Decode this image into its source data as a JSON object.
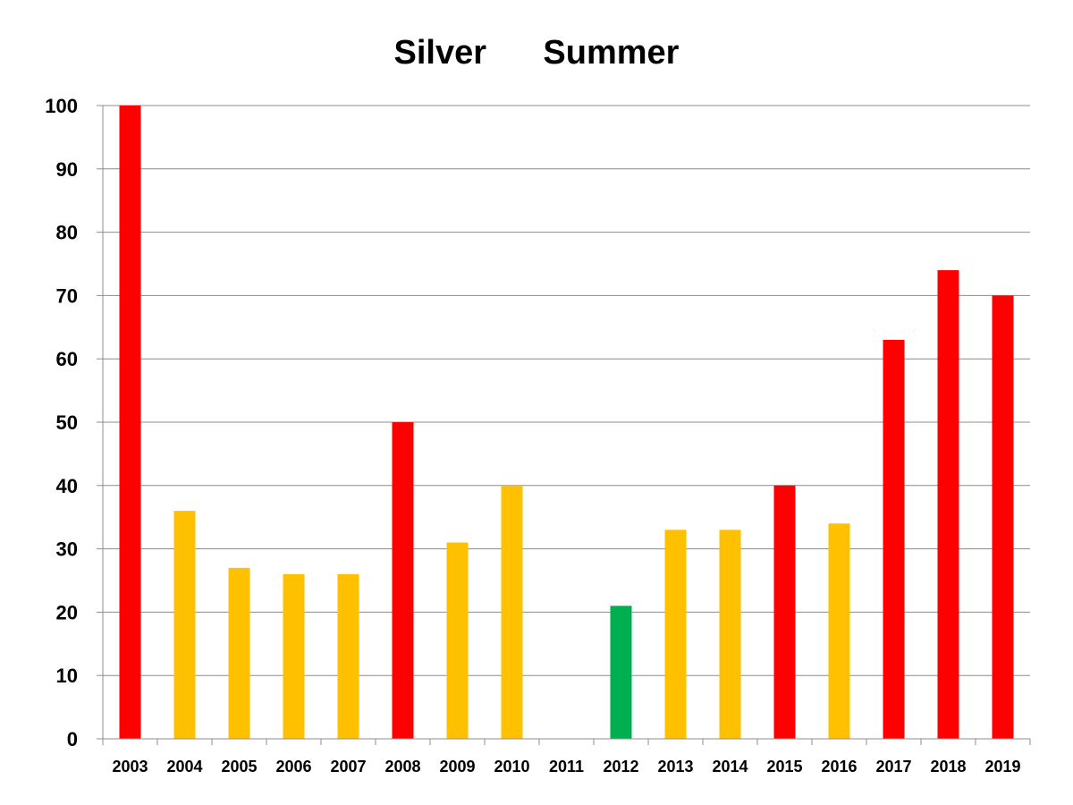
{
  "chart_data": {
    "type": "bar",
    "title": "Silver      Summer",
    "xlabel": "",
    "ylabel": "",
    "ylim": [
      0,
      100
    ],
    "yticks": [
      "0",
      "10",
      "20",
      "30",
      "40",
      "50",
      "60",
      "70",
      "80",
      "90",
      "100"
    ],
    "grid": true,
    "legend": "none",
    "categories": [
      "2003",
      "2004",
      "2005",
      "2006",
      "2007",
      "2008",
      "2009",
      "2010",
      "2011",
      "2012",
      "2013",
      "2014",
      "2015",
      "2016",
      "2017",
      "2018",
      "2019"
    ],
    "values": [
      100,
      36,
      27,
      26,
      26,
      50,
      31,
      40,
      0,
      21,
      33,
      33,
      40,
      34,
      63,
      74,
      70
    ],
    "bar_colors": [
      "#ff0000",
      "#ffc000",
      "#ffc000",
      "#ffc000",
      "#ffc000",
      "#ff0000",
      "#ffc000",
      "#ffc000",
      "#ffc000",
      "#00b050",
      "#ffc000",
      "#ffc000",
      "#ff0000",
      "#ffc000",
      "#ff0000",
      "#ff0000",
      "#ff0000"
    ]
  }
}
